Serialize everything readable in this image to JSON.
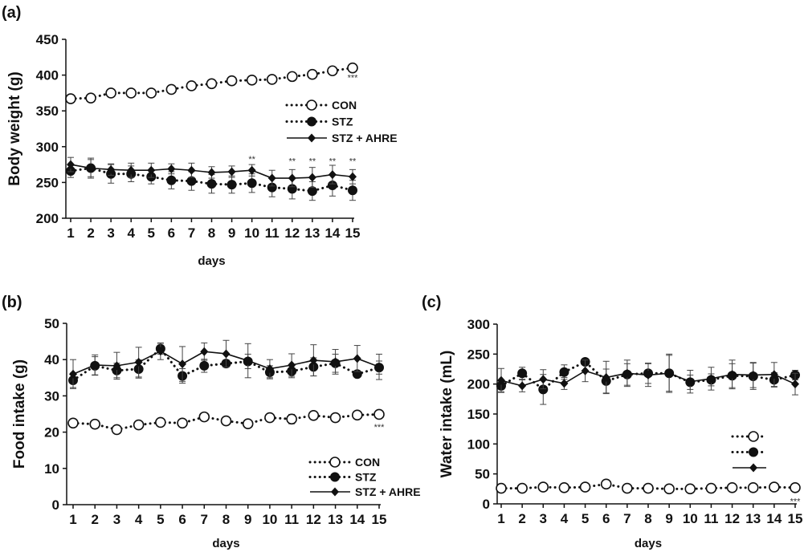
{
  "chart_data": [
    {
      "panel_label": "(a)",
      "type": "line",
      "xlabel": "days",
      "ylabel": "Body weight (g)",
      "ylim": [
        200,
        450
      ],
      "yticks": [
        200,
        250,
        300,
        350,
        400,
        450
      ],
      "x": [
        1,
        2,
        3,
        4,
        5,
        6,
        7,
        8,
        9,
        10,
        11,
        12,
        13,
        14,
        15
      ],
      "legend_position": "right",
      "series": [
        {
          "name": "CON",
          "style": "dotted",
          "marker": "open-circle",
          "values": [
            367,
            368,
            375,
            375,
            375,
            380,
            385,
            388,
            392,
            393,
            394,
            398,
            401,
            406,
            410
          ],
          "error": [
            3,
            3,
            3,
            3,
            3,
            3,
            3,
            3,
            3,
            3,
            3,
            3,
            3,
            3,
            3
          ]
        },
        {
          "name": "STZ",
          "style": "dotted",
          "marker": "filled-circle",
          "values": [
            266,
            270,
            262,
            262,
            258,
            253,
            252,
            248,
            247,
            249,
            243,
            241,
            238,
            246,
            239
          ],
          "error": [
            9,
            12,
            13,
            11,
            10,
            12,
            13,
            13,
            12,
            13,
            13,
            14,
            13,
            15,
            14
          ]
        },
        {
          "name": "STZ + AHRE",
          "style": "solid",
          "marker": "filled-diamond",
          "values": [
            275,
            270,
            268,
            267,
            267,
            269,
            267,
            264,
            265,
            267,
            256,
            256,
            257,
            261,
            258
          ],
          "error": [
            10,
            14,
            8,
            10,
            10,
            7,
            10,
            8,
            8,
            8,
            11,
            12,
            14,
            13,
            10
          ]
        }
      ],
      "annotations": [
        {
          "day": 10,
          "text": "**",
          "value": 283
        },
        {
          "day": 12,
          "text": "**",
          "value": 280
        },
        {
          "day": 13,
          "text": "**",
          "value": 280
        },
        {
          "day": 14,
          "text": "**",
          "value": 280
        },
        {
          "day": 15,
          "text": "**",
          "value": 280
        },
        {
          "day": 15,
          "text": "***",
          "value": 397
        }
      ]
    },
    {
      "panel_label": "(b)",
      "type": "line",
      "xlabel": "days",
      "ylabel": "Food intake (g)",
      "ylim": [
        0,
        50
      ],
      "yticks": [
        0,
        10,
        20,
        30,
        40,
        50
      ],
      "x": [
        1,
        2,
        3,
        4,
        5,
        6,
        7,
        8,
        9,
        10,
        11,
        12,
        13,
        14,
        15
      ],
      "legend_position": "bottom-right",
      "series": [
        {
          "name": "CON",
          "style": "dotted",
          "marker": "open-circle",
          "values": [
            22.5,
            22.2,
            20.7,
            22.0,
            22.7,
            22.5,
            24.2,
            23.1,
            22.3,
            24.0,
            23.6,
            24.6,
            24.0,
            24.7,
            24.9
          ],
          "error": [
            0.5,
            0.5,
            0.4,
            0.5,
            0.5,
            0.5,
            0.5,
            0.5,
            0.5,
            0.5,
            1.3,
            0.5,
            0.5,
            0.8,
            0.5
          ]
        },
        {
          "name": "STZ",
          "style": "dotted",
          "marker": "filled-circle",
          "values": [
            34.3,
            38.3,
            37.0,
            37.4,
            43.0,
            35.5,
            38.3,
            38.9,
            39.5,
            36.5,
            36.8,
            38.0,
            39.0,
            36.0,
            37.8
          ],
          "error": [
            2.0,
            2.5,
            2.0,
            2.5,
            1.5,
            2.0,
            1.8,
            1.0,
            2.0,
            1.8,
            1.8,
            2.5,
            2.5,
            0.5,
            1.8
          ]
        },
        {
          "name": "STZ + AHRE",
          "style": "solid",
          "marker": "filled-diamond",
          "values": [
            36.0,
            38.5,
            38.3,
            39.3,
            42.3,
            38.8,
            42.2,
            41.6,
            39.7,
            37.5,
            38.5,
            39.8,
            39.4,
            40.3,
            38.0
          ],
          "error": [
            4.0,
            2.8,
            3.7,
            4.1,
            2.3,
            4.8,
            2.4,
            3.7,
            4.7,
            2.5,
            3.1,
            4.3,
            3.4,
            3.6,
            3.5
          ]
        }
      ],
      "annotations": [
        {
          "day": 15,
          "text": "***",
          "value": 21.5
        }
      ]
    },
    {
      "panel_label": "(c)",
      "type": "line",
      "xlabel": "days",
      "ylabel": "Water intake (mL)",
      "ylim": [
        0,
        300
      ],
      "yticks": [
        0,
        50,
        100,
        150,
        200,
        250,
        300
      ],
      "x": [
        1,
        2,
        3,
        4,
        5,
        6,
        7,
        8,
        9,
        10,
        11,
        12,
        13,
        14,
        15
      ],
      "legend_position": "bottom-right",
      "series": [
        {
          "style": "dotted",
          "marker": "open-circle",
          "values": [
            26,
            26,
            28,
            27,
            28,
            33,
            26,
            26,
            25,
            25,
            26,
            27,
            27,
            28,
            27
          ],
          "error": [
            2,
            2,
            2,
            2,
            2,
            2,
            2,
            2,
            2,
            2,
            2,
            2,
            2,
            2,
            2
          ]
        },
        {
          "style": "dotted",
          "marker": "filled-circle",
          "values": [
            197,
            218,
            191,
            220,
            237,
            205,
            216,
            218,
            218,
            203,
            207,
            214,
            213,
            207,
            215
          ],
          "error": [
            10,
            10,
            25,
            12,
            5,
            20,
            18,
            17,
            30,
            12,
            10,
            20,
            22,
            12,
            8
          ]
        },
        {
          "style": "solid",
          "marker": "filled-diamond",
          "values": [
            206,
            197,
            208,
            201,
            222,
            211,
            218,
            215,
            218,
            204,
            209,
            216,
            215,
            216,
            200
          ],
          "error": [
            20,
            10,
            16,
            10,
            18,
            27,
            22,
            19,
            32,
            19,
            19,
            24,
            21,
            20,
            18
          ]
        }
      ],
      "annotations": [
        {
          "day": 15,
          "text": "***",
          "value": 5
        }
      ]
    }
  ]
}
